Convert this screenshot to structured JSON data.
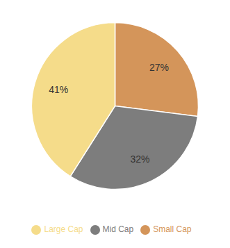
{
  "chart_data": {
    "type": "pie",
    "categories": [
      "Small Cap",
      "Mid Cap",
      "Large Cap"
    ],
    "values": [
      27,
      32,
      41
    ],
    "value_labels": [
      "27%",
      "32%",
      "41%"
    ],
    "data_labels": true,
    "colors": [
      "#D4955A",
      "#7D7D7D",
      "#F5DC8A"
    ],
    "legend": "bottom"
  }
}
